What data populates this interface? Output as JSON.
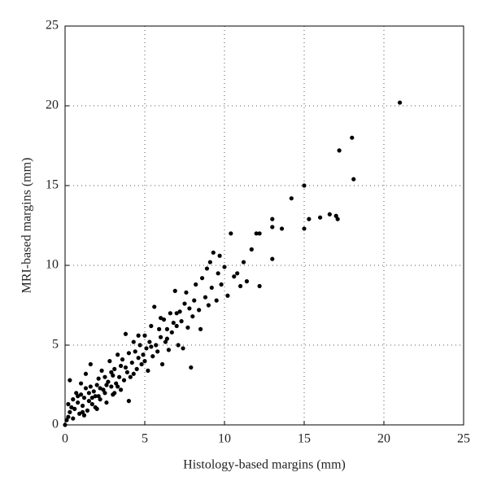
{
  "chart_data": {
    "type": "scatter",
    "xlabel": "Histology-based margins (mm)",
    "ylabel": "MRI-based margins (mm)",
    "xlim": [
      0,
      25
    ],
    "ylim": [
      0,
      25
    ],
    "xticks": [
      0,
      5,
      10,
      15,
      20,
      25
    ],
    "yticks": [
      0,
      5,
      10,
      15,
      20,
      25
    ],
    "grid": true,
    "color": "#000000",
    "x": [
      0,
      0.1,
      0.2,
      0.3,
      0.4,
      0.3,
      0.5,
      0.6,
      0.7,
      0.8,
      0.9,
      1.0,
      1.0,
      1.1,
      1.2,
      1.3,
      1.3,
      1.4,
      1.5,
      1.5,
      1.6,
      1.7,
      1.8,
      1.9,
      2.0,
      2.0,
      2.1,
      2.2,
      2.3,
      2.4,
      2.5,
      2.5,
      2.6,
      2.7,
      2.8,
      2.9,
      3.0,
      3.0,
      3.1,
      3.2,
      3.3,
      3.4,
      3.5,
      3.5,
      3.6,
      3.7,
      3.8,
      3.9,
      4.0,
      4.0,
      4.1,
      4.2,
      4.3,
      4.4,
      4.5,
      4.6,
      4.7,
      4.8,
      4.9,
      5.0,
      5.0,
      5.1,
      5.2,
      5.3,
      5.4,
      5.5,
      5.6,
      5.7,
      5.8,
      5.9,
      6.0,
      6.1,
      6.2,
      6.3,
      6.4,
      6.5,
      6.6,
      6.7,
      6.8,
      6.9,
      7.0,
      7.1,
      7.2,
      7.3,
      7.4,
      7.5,
      7.6,
      7.7,
      7.8,
      7.9,
      8.0,
      8.1,
      8.2,
      8.4,
      8.5,
      8.6,
      8.8,
      8.9,
      9.0,
      9.1,
      9.2,
      9.3,
      9.5,
      9.6,
      9.7,
      9.8,
      10.0,
      10.2,
      10.4,
      10.6,
      10.8,
      11.0,
      11.2,
      11.4,
      11.7,
      12.0,
      12.2,
      12.2,
      13.0,
      13.0,
      13.0,
      13.6,
      14.2,
      15.0,
      15.0,
      15.3,
      16.0,
      16.6,
      17.0,
      17.1,
      17.2,
      18.0,
      18.1,
      21.0,
      0.5,
      0.8,
      1.2,
      1.6,
      1.9,
      2.2,
      2.6,
      2.9,
      3.3,
      3.8,
      4.3,
      4.6,
      5.4,
      6.0,
      6.4,
      7.0,
      1.1,
      0.2,
      1.7,
      2.1,
      3.1
    ],
    "values": [
      0,
      0.3,
      0.5,
      0.8,
      1.1,
      2.8,
      1.6,
      1.0,
      2.0,
      1.4,
      0.7,
      1.9,
      2.6,
      1.2,
      1.7,
      2.3,
      3.2,
      0.9,
      1.5,
      2.0,
      3.8,
      1.3,
      2.1,
      1.8,
      2.5,
      1.0,
      2.9,
      1.6,
      3.4,
      2.2,
      2.0,
      3.0,
      1.4,
      2.7,
      4.0,
      2.4,
      3.1,
      1.9,
      3.5,
      2.6,
      4.4,
      3.0,
      2.2,
      3.7,
      4.1,
      2.8,
      5.7,
      3.3,
      4.5,
      1.5,
      3.0,
      3.9,
      5.2,
      4.6,
      3.5,
      4.2,
      5.0,
      3.8,
      4.4,
      4.0,
      5.6,
      4.8,
      3.4,
      5.2,
      6.2,
      4.3,
      7.4,
      5.0,
      4.6,
      6.0,
      5.5,
      3.8,
      6.6,
      5.2,
      6.0,
      4.7,
      7.0,
      5.8,
      6.4,
      8.4,
      6.2,
      5.0,
      7.1,
      6.5,
      4.8,
      7.6,
      8.3,
      6.1,
      7.3,
      3.6,
      6.8,
      7.8,
      8.8,
      7.2,
      6.0,
      9.2,
      8.0,
      9.8,
      7.5,
      10.2,
      8.6,
      10.8,
      7.8,
      9.5,
      10.6,
      8.8,
      9.9,
      8.1,
      12.0,
      9.3,
      9.5,
      8.7,
      10.2,
      9.0,
      11.0,
      12.0,
      8.7,
      12.0,
      10.4,
      12.4,
      12.9,
      12.3,
      14.2,
      12.3,
      15.0,
      12.9,
      13.0,
      13.2,
      13.1,
      12.9,
      17.2,
      18.0,
      15.4,
      20.2,
      0.4,
      1.8,
      0.6,
      2.4,
      1.1,
      2.3,
      2.5,
      3.3,
      2.4,
      3.6,
      3.2,
      5.6,
      4.9,
      6.7,
      5.4,
      7.0,
      0.8,
      1.3,
      1.7,
      1.8,
      2.0
    ]
  }
}
